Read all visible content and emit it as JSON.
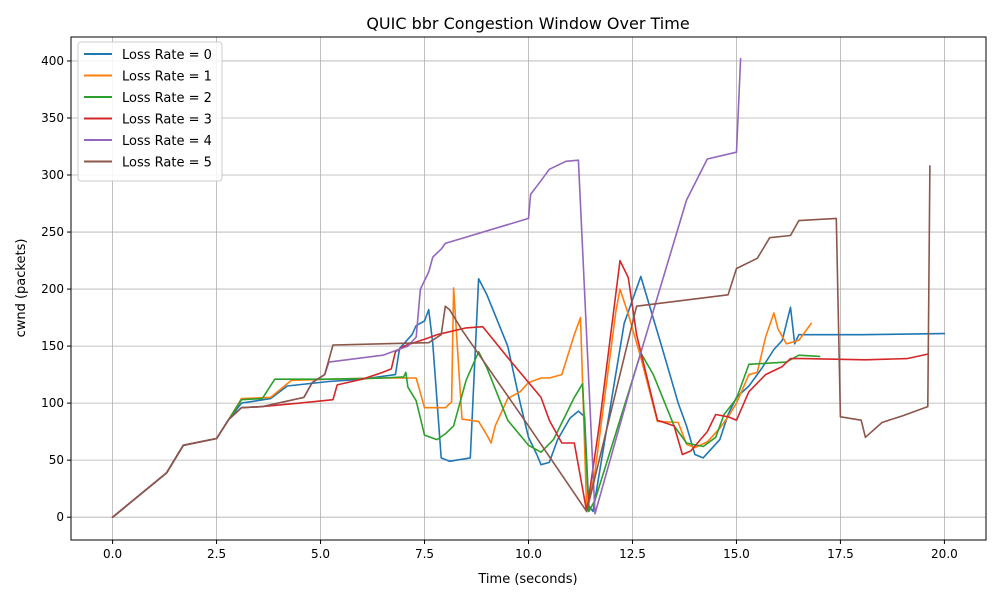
{
  "chart_data": {
    "type": "line",
    "title": "QUIC bbr Congestion Window Over Time",
    "xlabel": "Time (seconds)",
    "ylabel": "cwnd (packets)",
    "xlim": [
      -1,
      21
    ],
    "ylim": [
      -20,
      421
    ],
    "xticks": [
      0,
      2.5,
      5,
      7.5,
      10,
      12.5,
      15,
      17.5,
      20
    ],
    "xtick_labels": [
      "0.0",
      "2.5",
      "5.0",
      "7.5",
      "10.0",
      "12.5",
      "15.0",
      "17.5",
      "20.0"
    ],
    "yticks": [
      0,
      50,
      100,
      150,
      200,
      250,
      300,
      350,
      400
    ],
    "ytick_labels": [
      "0",
      "50",
      "100",
      "150",
      "200",
      "250",
      "300",
      "350",
      "400"
    ],
    "grid": true,
    "legend_position": "top-left",
    "series": [
      {
        "name": "Loss Rate = 0",
        "color": "#1f77b4",
        "points": [
          [
            0,
            0
          ],
          [
            1.3,
            39
          ],
          [
            1.7,
            63
          ],
          [
            2.5,
            69
          ],
          [
            2.8,
            86
          ],
          [
            3.1,
            100
          ],
          [
            3.8,
            104
          ],
          [
            4.2,
            115
          ],
          [
            5.2,
            119
          ],
          [
            6,
            121
          ],
          [
            6.8,
            125
          ],
          [
            6.9,
            148
          ],
          [
            7.2,
            160
          ],
          [
            7.3,
            168
          ],
          [
            7.5,
            172
          ],
          [
            7.6,
            182
          ],
          [
            7.7,
            152
          ],
          [
            7.9,
            52
          ],
          [
            8.1,
            49
          ],
          [
            8.6,
            52
          ],
          [
            8.8,
            209
          ],
          [
            9,
            195
          ],
          [
            9.5,
            150
          ],
          [
            9.8,
            100
          ],
          [
            10,
            70
          ],
          [
            10.2,
            55
          ],
          [
            10.3,
            46
          ],
          [
            10.5,
            48
          ],
          [
            10.7,
            68
          ],
          [
            11,
            87
          ],
          [
            11.2,
            93
          ],
          [
            11.35,
            88
          ],
          [
            11.45,
            10
          ],
          [
            11.55,
            5
          ],
          [
            12.3,
            170
          ],
          [
            12.7,
            211
          ],
          [
            13.2,
            150
          ],
          [
            13.6,
            100
          ],
          [
            13.8,
            80
          ],
          [
            14,
            55
          ],
          [
            14.2,
            52
          ],
          [
            14.3,
            56
          ],
          [
            14.6,
            68
          ],
          [
            14.8,
            90
          ],
          [
            15,
            105
          ],
          [
            15.3,
            115
          ],
          [
            15.6,
            130
          ],
          [
            15.9,
            147
          ],
          [
            16.1,
            155
          ],
          [
            16.3,
            184
          ],
          [
            16.4,
            152
          ],
          [
            16.5,
            160
          ],
          [
            18,
            160
          ],
          [
            20,
            161
          ]
        ]
      },
      {
        "name": "Loss Rate = 1",
        "color": "#ff7f0e",
        "points": [
          [
            0,
            0
          ],
          [
            1.3,
            39
          ],
          [
            1.7,
            63
          ],
          [
            2.5,
            69
          ],
          [
            2.8,
            86
          ],
          [
            3.1,
            104
          ],
          [
            3.8,
            105
          ],
          [
            4.3,
            120
          ],
          [
            5.2,
            121
          ],
          [
            6.5,
            122
          ],
          [
            7.3,
            122
          ],
          [
            7.5,
            96
          ],
          [
            8,
            96
          ],
          [
            8.15,
            101
          ],
          [
            8.2,
            201
          ],
          [
            8.4,
            86
          ],
          [
            8.8,
            84
          ],
          [
            9,
            72
          ],
          [
            9.1,
            65
          ],
          [
            9.2,
            80
          ],
          [
            9.5,
            104
          ],
          [
            9.8,
            110
          ],
          [
            10,
            118
          ],
          [
            10.3,
            122
          ],
          [
            10.5,
            122
          ],
          [
            10.8,
            125
          ],
          [
            11.1,
            160
          ],
          [
            11.25,
            175
          ],
          [
            11.4,
            5
          ],
          [
            11.6,
            40
          ],
          [
            12.1,
            180
          ],
          [
            12.2,
            200
          ],
          [
            12.4,
            178
          ],
          [
            12.7,
            140
          ],
          [
            13.1,
            84
          ],
          [
            13.6,
            83
          ],
          [
            13.8,
            64
          ],
          [
            14,
            61
          ],
          [
            14.3,
            66
          ],
          [
            14.6,
            78
          ],
          [
            14.8,
            88
          ],
          [
            15,
            100
          ],
          [
            15.3,
            125
          ],
          [
            15.5,
            127
          ],
          [
            15.7,
            158
          ],
          [
            15.9,
            179
          ],
          [
            16,
            165
          ],
          [
            16.2,
            152
          ],
          [
            16.5,
            155
          ],
          [
            16.8,
            170
          ]
        ]
      },
      {
        "name": "Loss Rate = 2",
        "color": "#2ca02c",
        "points": [
          [
            0,
            0
          ],
          [
            1.3,
            39
          ],
          [
            1.7,
            63
          ],
          [
            2.5,
            69
          ],
          [
            2.8,
            86
          ],
          [
            3.1,
            103
          ],
          [
            3.6,
            104
          ],
          [
            3.9,
            121
          ],
          [
            5.2,
            121
          ],
          [
            6.5,
            122
          ],
          [
            7,
            123
          ],
          [
            7.05,
            127
          ],
          [
            7.1,
            114
          ],
          [
            7.3,
            102
          ],
          [
            7.5,
            72
          ],
          [
            7.8,
            68
          ],
          [
            8,
            73
          ],
          [
            8.2,
            80
          ],
          [
            8.5,
            120
          ],
          [
            8.8,
            145
          ],
          [
            9,
            131
          ],
          [
            9.5,
            85
          ],
          [
            10,
            63
          ],
          [
            10.3,
            57
          ],
          [
            10.6,
            68
          ],
          [
            10.9,
            90
          ],
          [
            11.1,
            105
          ],
          [
            11.3,
            117
          ],
          [
            11.45,
            5
          ],
          [
            11.6,
            15
          ],
          [
            12.7,
            144
          ],
          [
            13,
            125
          ],
          [
            13.5,
            80
          ],
          [
            13.8,
            65
          ],
          [
            14.2,
            62
          ],
          [
            14.5,
            70
          ],
          [
            14.7,
            90
          ],
          [
            15,
            104
          ],
          [
            15.3,
            134
          ],
          [
            16.2,
            136
          ],
          [
            16.5,
            142
          ],
          [
            17,
            141
          ]
        ]
      },
      {
        "name": "Loss Rate = 3",
        "color": "#d62728",
        "points": [
          [
            0,
            0
          ],
          [
            1.3,
            39
          ],
          [
            1.7,
            63
          ],
          [
            2.5,
            69
          ],
          [
            2.8,
            86
          ],
          [
            3.1,
            96
          ],
          [
            3.6,
            97
          ],
          [
            4.5,
            100
          ],
          [
            5.3,
            103
          ],
          [
            5.4,
            116
          ],
          [
            6,
            121
          ],
          [
            6.5,
            127
          ],
          [
            6.7,
            130
          ],
          [
            6.8,
            145
          ],
          [
            7,
            150
          ],
          [
            7.5,
            156
          ],
          [
            7.8,
            160
          ],
          [
            8.5,
            166
          ],
          [
            8.9,
            167
          ],
          [
            9.5,
            140
          ],
          [
            10.3,
            105
          ],
          [
            10.5,
            85
          ],
          [
            10.8,
            65
          ],
          [
            11.1,
            65
          ],
          [
            11.4,
            5
          ],
          [
            11.7,
            80
          ],
          [
            12.2,
            225
          ],
          [
            12.4,
            210
          ],
          [
            12.6,
            160
          ],
          [
            13.1,
            85
          ],
          [
            13.5,
            80
          ],
          [
            13.7,
            55
          ],
          [
            13.9,
            58
          ],
          [
            14.3,
            75
          ],
          [
            14.5,
            90
          ],
          [
            14.8,
            88
          ],
          [
            15,
            85
          ],
          [
            15.3,
            110
          ],
          [
            15.7,
            125
          ],
          [
            16.1,
            132
          ],
          [
            16.3,
            139
          ],
          [
            16.6,
            139
          ],
          [
            18.1,
            138
          ],
          [
            19.1,
            139
          ],
          [
            19.6,
            143
          ]
        ]
      },
      {
        "name": "Loss Rate = 4",
        "color": "#9467bd",
        "points": [
          [
            0,
            0
          ],
          [
            1.3,
            39
          ],
          [
            1.7,
            63
          ],
          [
            2.5,
            69
          ],
          [
            2.8,
            86
          ],
          [
            3.1,
            96
          ],
          [
            3.6,
            97
          ],
          [
            4.6,
            105
          ],
          [
            4.8,
            118
          ],
          [
            5.1,
            125
          ],
          [
            5.2,
            136
          ],
          [
            6.5,
            142
          ],
          [
            7.1,
            150
          ],
          [
            7.3,
            158
          ],
          [
            7.4,
            200
          ],
          [
            7.6,
            215
          ],
          [
            7.7,
            228
          ],
          [
            7.9,
            235
          ],
          [
            8,
            240
          ],
          [
            10,
            262
          ],
          [
            10.05,
            283
          ],
          [
            10.3,
            295
          ],
          [
            10.5,
            305
          ],
          [
            10.9,
            312
          ],
          [
            11.2,
            313
          ],
          [
            11.6,
            3
          ],
          [
            12.5,
            120
          ],
          [
            13.8,
            278
          ],
          [
            14.3,
            314
          ],
          [
            15,
            320
          ],
          [
            15.1,
            402
          ]
        ]
      },
      {
        "name": "Loss Rate = 5",
        "color": "#8c564b",
        "points": [
          [
            0,
            0
          ],
          [
            1.3,
            39
          ],
          [
            1.7,
            63
          ],
          [
            2.5,
            69
          ],
          [
            2.8,
            86
          ],
          [
            3.1,
            96
          ],
          [
            3.6,
            97
          ],
          [
            4.6,
            105
          ],
          [
            4.8,
            118
          ],
          [
            5.1,
            125
          ],
          [
            5.3,
            151
          ],
          [
            7.6,
            153
          ],
          [
            7.9,
            160
          ],
          [
            8,
            185
          ],
          [
            8.1,
            182
          ],
          [
            8.4,
            164
          ],
          [
            10,
            80
          ],
          [
            11.4,
            5
          ],
          [
            12.6,
            185
          ],
          [
            14.8,
            195
          ],
          [
            15,
            218
          ],
          [
            15.5,
            227
          ],
          [
            15.8,
            245
          ],
          [
            16.3,
            247
          ],
          [
            16.5,
            260
          ],
          [
            17.4,
            262
          ],
          [
            17.5,
            88
          ],
          [
            18,
            85
          ],
          [
            18.1,
            70
          ],
          [
            18.5,
            83
          ],
          [
            19,
            89
          ],
          [
            19.6,
            97
          ],
          [
            19.65,
            308
          ]
        ]
      }
    ]
  }
}
